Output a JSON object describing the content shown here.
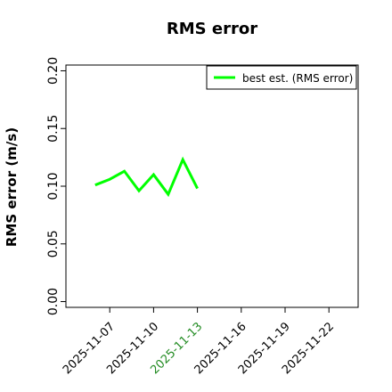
{
  "chart_data": {
    "type": "line",
    "title": "RMS error",
    "y_label": "RMS error (m/s)",
    "x": [
      "2025-11-06",
      "2025-11-07",
      "2025-11-08",
      "2025-11-09",
      "2025-11-10",
      "2025-11-11",
      "2025-11-12",
      "2025-11-13"
    ],
    "series": [
      {
        "name": "best est. (RMS error)",
        "color": "#00ff00",
        "values": [
          0.101,
          0.106,
          0.113,
          0.096,
          0.11,
          0.093,
          0.123,
          0.098
        ]
      }
    ],
    "xlim": [
      "2025-11-04",
      "2025-11-24"
    ],
    "xticks": [
      "2025-11-07",
      "2025-11-10",
      "2025-11-13",
      "2025-11-16",
      "2025-11-19",
      "2025-11-22"
    ],
    "xtick_highlight": {
      "index": 2,
      "color": "#228b22"
    },
    "ylim": [
      -0.005,
      0.205
    ],
    "yticks": [
      {
        "value": 0,
        "label": "0.00"
      },
      {
        "value": 0.05,
        "label": "0.05"
      },
      {
        "value": 0.1,
        "label": "0.10"
      },
      {
        "value": 0.15,
        "label": "0.15"
      },
      {
        "value": 0.2,
        "label": "0.20"
      }
    ],
    "grid": false,
    "legend": "upper right"
  }
}
